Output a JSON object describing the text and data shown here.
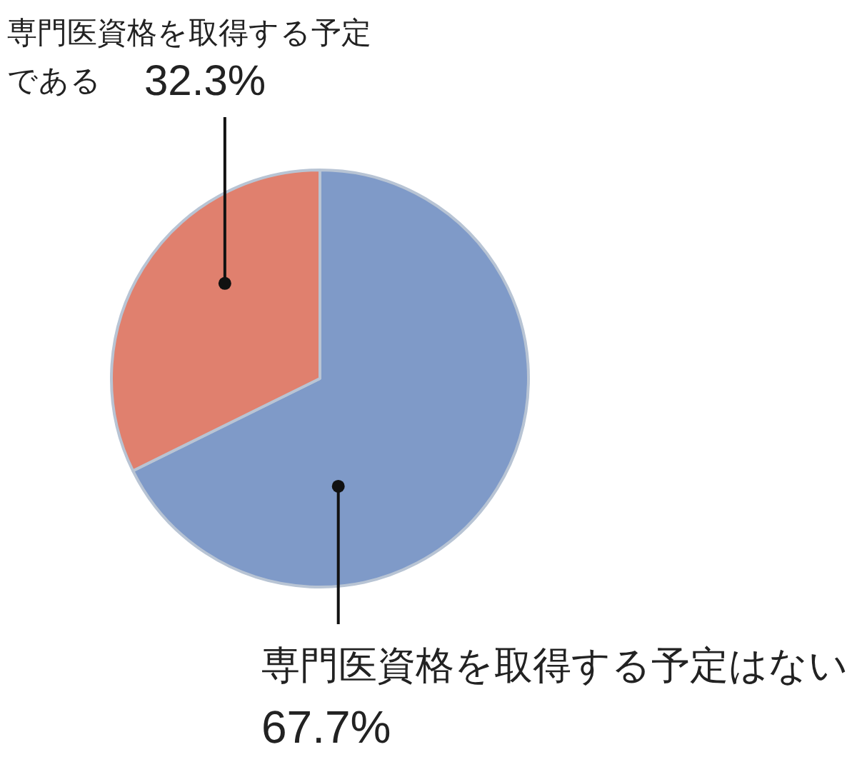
{
  "chart_data": {
    "type": "pie",
    "categories": [
      "専門医資格を取得する予定はない",
      "専門医資格を取得する予定である"
    ],
    "values": [
      67.7,
      32.3
    ],
    "colors": [
      "#7f9ac8",
      "#e0806e"
    ],
    "value_labels": [
      "67.7%",
      "32.3%"
    ],
    "legend": false
  }
}
